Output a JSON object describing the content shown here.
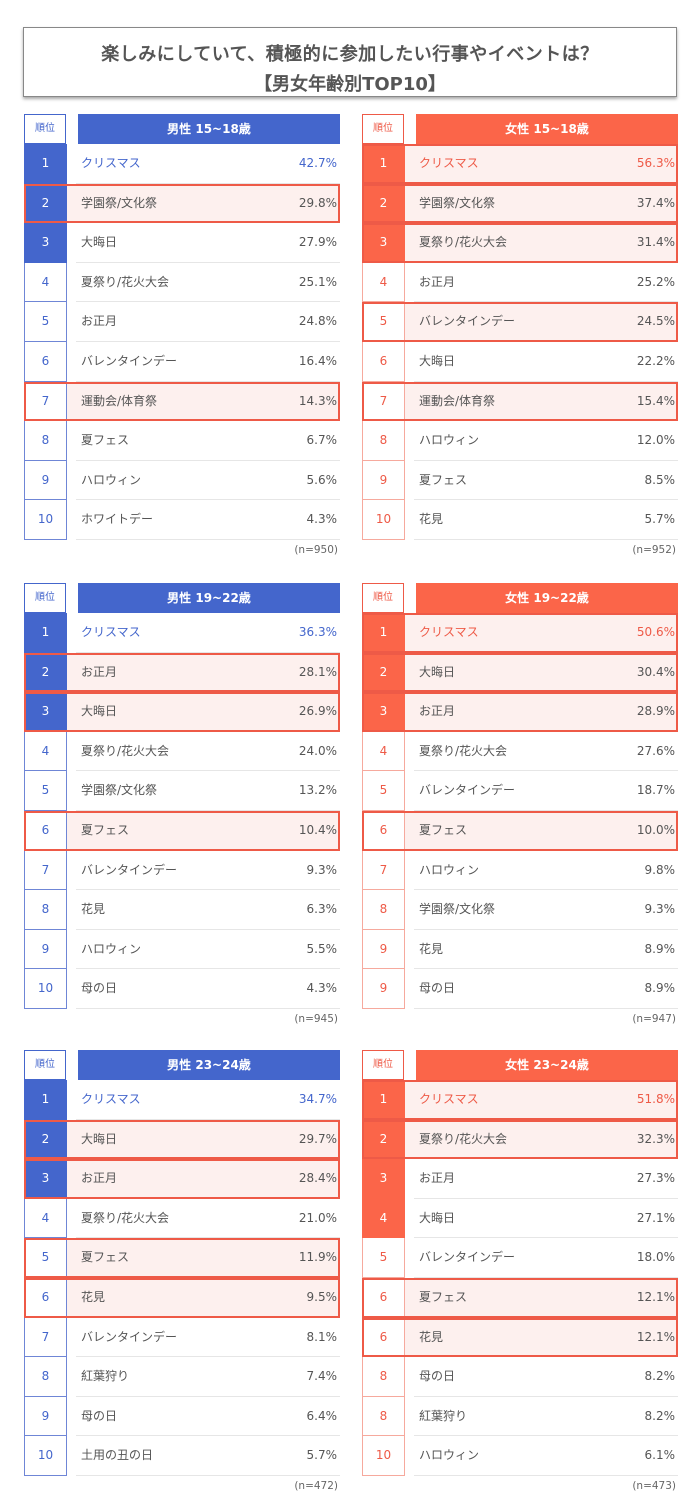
{
  "title": {
    "line1": "楽しみにしていて、積極的に参加したい行事やイベントは？",
    "line2": "【男女年齢別TOP10】"
  },
  "colors": {
    "male": "#4466cc",
    "female": "#fb6549",
    "highlight_border": "#ee5a47",
    "highlight_bg": "#fdf0ee"
  },
  "rank_header": "順位",
  "panels": [
    {
      "id": "m1518",
      "gender": "male",
      "header": "男性 15~18歳",
      "n": "(n=950)",
      "filled_ranks": 3,
      "rows": [
        {
          "rank": "1",
          "label": "クリスマス",
          "pct": "42.7%",
          "highlight": false
        },
        {
          "rank": "2",
          "label": "学園祭/文化祭",
          "pct": "29.8%",
          "highlight": true
        },
        {
          "rank": "3",
          "label": "大晦日",
          "pct": "27.9%",
          "highlight": false
        },
        {
          "rank": "4",
          "label": "夏祭り/花火大会",
          "pct": "25.1%",
          "highlight": false
        },
        {
          "rank": "5",
          "label": "お正月",
          "pct": "24.8%",
          "highlight": false
        },
        {
          "rank": "6",
          "label": "バレンタインデー",
          "pct": "16.4%",
          "highlight": false
        },
        {
          "rank": "7",
          "label": "運動会/体育祭",
          "pct": "14.3%",
          "highlight": true
        },
        {
          "rank": "8",
          "label": "夏フェス",
          "pct": "6.7%",
          "highlight": false
        },
        {
          "rank": "9",
          "label": "ハロウィン",
          "pct": "5.6%",
          "highlight": false
        },
        {
          "rank": "10",
          "label": "ホワイトデー",
          "pct": "4.3%",
          "highlight": false
        }
      ]
    },
    {
      "id": "f1518",
      "gender": "female",
      "header": "女性 15~18歳",
      "n": "(n=952)",
      "filled_ranks": 3,
      "rows": [
        {
          "rank": "1",
          "label": "クリスマス",
          "pct": "56.3%",
          "highlight": true
        },
        {
          "rank": "2",
          "label": "学園祭/文化祭",
          "pct": "37.4%",
          "highlight": true
        },
        {
          "rank": "3",
          "label": "夏祭り/花火大会",
          "pct": "31.4%",
          "highlight": true
        },
        {
          "rank": "4",
          "label": "お正月",
          "pct": "25.2%",
          "highlight": false
        },
        {
          "rank": "5",
          "label": "バレンタインデー",
          "pct": "24.5%",
          "highlight": true
        },
        {
          "rank": "6",
          "label": "大晦日",
          "pct": "22.2%",
          "highlight": false
        },
        {
          "rank": "7",
          "label": "運動会/体育祭",
          "pct": "15.4%",
          "highlight": true
        },
        {
          "rank": "8",
          "label": "ハロウィン",
          "pct": "12.0%",
          "highlight": false
        },
        {
          "rank": "9",
          "label": "夏フェス",
          "pct": "8.5%",
          "highlight": false
        },
        {
          "rank": "10",
          "label": "花見",
          "pct": "5.7%",
          "highlight": false
        }
      ]
    },
    {
      "id": "m1922",
      "gender": "male",
      "header": "男性 19~22歳",
      "n": "(n=945)",
      "filled_ranks": 3,
      "rows": [
        {
          "rank": "1",
          "label": "クリスマス",
          "pct": "36.3%",
          "highlight": false
        },
        {
          "rank": "2",
          "label": "お正月",
          "pct": "28.1%",
          "highlight": true
        },
        {
          "rank": "3",
          "label": "大晦日",
          "pct": "26.9%",
          "highlight": true
        },
        {
          "rank": "4",
          "label": "夏祭り/花火大会",
          "pct": "24.0%",
          "highlight": false
        },
        {
          "rank": "5",
          "label": "学園祭/文化祭",
          "pct": "13.2%",
          "highlight": false
        },
        {
          "rank": "6",
          "label": "夏フェス",
          "pct": "10.4%",
          "highlight": true
        },
        {
          "rank": "7",
          "label": "バレンタインデー",
          "pct": "9.3%",
          "highlight": false
        },
        {
          "rank": "8",
          "label": "花見",
          "pct": "6.3%",
          "highlight": false
        },
        {
          "rank": "9",
          "label": "ハロウィン",
          "pct": "5.5%",
          "highlight": false
        },
        {
          "rank": "10",
          "label": "母の日",
          "pct": "4.3%",
          "highlight": false
        }
      ]
    },
    {
      "id": "f1922",
      "gender": "female",
      "header": "女性 19~22歳",
      "n": "(n=947)",
      "filled_ranks": 3,
      "rows": [
        {
          "rank": "1",
          "label": "クリスマス",
          "pct": "50.6%",
          "highlight": true
        },
        {
          "rank": "2",
          "label": "大晦日",
          "pct": "30.4%",
          "highlight": true
        },
        {
          "rank": "3",
          "label": "お正月",
          "pct": "28.9%",
          "highlight": true
        },
        {
          "rank": "4",
          "label": "夏祭り/花火大会",
          "pct": "27.6%",
          "highlight": false
        },
        {
          "rank": "5",
          "label": "バレンタインデー",
          "pct": "18.7%",
          "highlight": false
        },
        {
          "rank": "6",
          "label": "夏フェス",
          "pct": "10.0%",
          "highlight": true
        },
        {
          "rank": "7",
          "label": "ハロウィン",
          "pct": "9.8%",
          "highlight": false
        },
        {
          "rank": "8",
          "label": "学園祭/文化祭",
          "pct": "9.3%",
          "highlight": false
        },
        {
          "rank": "9",
          "label": "花見",
          "pct": "8.9%",
          "highlight": false
        },
        {
          "rank": "9",
          "label": "母の日",
          "pct": "8.9%",
          "highlight": false
        }
      ]
    },
    {
      "id": "m2324",
      "gender": "male",
      "header": "男性 23~24歳",
      "n": "(n=472)",
      "filled_ranks": 3,
      "rows": [
        {
          "rank": "1",
          "label": "クリスマス",
          "pct": "34.7%",
          "highlight": false
        },
        {
          "rank": "2",
          "label": "大晦日",
          "pct": "29.7%",
          "highlight": true
        },
        {
          "rank": "3",
          "label": "お正月",
          "pct": "28.4%",
          "highlight": true
        },
        {
          "rank": "4",
          "label": "夏祭り/花火大会",
          "pct": "21.0%",
          "highlight": false
        },
        {
          "rank": "5",
          "label": "夏フェス",
          "pct": "11.9%",
          "highlight": true
        },
        {
          "rank": "6",
          "label": "花見",
          "pct": "9.5%",
          "highlight": true
        },
        {
          "rank": "7",
          "label": "バレンタインデー",
          "pct": "8.1%",
          "highlight": false
        },
        {
          "rank": "8",
          "label": "紅葉狩り",
          "pct": "7.4%",
          "highlight": false
        },
        {
          "rank": "9",
          "label": "母の日",
          "pct": "6.4%",
          "highlight": false
        },
        {
          "rank": "10",
          "label": "土用の丑の日",
          "pct": "5.7%",
          "highlight": false
        }
      ]
    },
    {
      "id": "f2324",
      "gender": "female",
      "header": "女性 23~24歳",
      "n": "(n=473)",
      "filled_ranks": 4,
      "rows": [
        {
          "rank": "1",
          "label": "クリスマス",
          "pct": "51.8%",
          "highlight": true
        },
        {
          "rank": "2",
          "label": "夏祭り/花火大会",
          "pct": "32.3%",
          "highlight": true
        },
        {
          "rank": "3",
          "label": "お正月",
          "pct": "27.3%",
          "highlight": false
        },
        {
          "rank": "4",
          "label": "大晦日",
          "pct": "27.1%",
          "highlight": false
        },
        {
          "rank": "5",
          "label": "バレンタインデー",
          "pct": "18.0%",
          "highlight": false
        },
        {
          "rank": "6",
          "label": "夏フェス",
          "pct": "12.1%",
          "highlight": true
        },
        {
          "rank": "6",
          "label": "花見",
          "pct": "12.1%",
          "highlight": true
        },
        {
          "rank": "8",
          "label": "母の日",
          "pct": "8.2%",
          "highlight": false
        },
        {
          "rank": "8",
          "label": "紅葉狩り",
          "pct": "8.2%",
          "highlight": false
        },
        {
          "rank": "10",
          "label": "ハロウィン",
          "pct": "6.1%",
          "highlight": false
        }
      ]
    }
  ],
  "chart_data": [
    {
      "type": "table",
      "title": "男性 15~18歳",
      "n": 950,
      "categories": [
        "クリスマス",
        "学園祭/文化祭",
        "大晦日",
        "夏祭り/花火大会",
        "お正月",
        "バレンタインデー",
        "運動会/体育祭",
        "夏フェス",
        "ハロウィン",
        "ホワイトデー"
      ],
      "values": [
        42.7,
        29.8,
        27.9,
        25.1,
        24.8,
        16.4,
        14.3,
        6.7,
        5.6,
        4.3
      ],
      "ranks": [
        1,
        2,
        3,
        4,
        5,
        6,
        7,
        8,
        9,
        10
      ]
    },
    {
      "type": "table",
      "title": "女性 15~18歳",
      "n": 952,
      "categories": [
        "クリスマス",
        "学園祭/文化祭",
        "夏祭り/花火大会",
        "お正月",
        "バレンタインデー",
        "大晦日",
        "運動会/体育祭",
        "ハロウィン",
        "夏フェス",
        "花見"
      ],
      "values": [
        56.3,
        37.4,
        31.4,
        25.2,
        24.5,
        22.2,
        15.4,
        12.0,
        8.5,
        5.7
      ],
      "ranks": [
        1,
        2,
        3,
        4,
        5,
        6,
        7,
        8,
        9,
        10
      ]
    },
    {
      "type": "table",
      "title": "男性 19~22歳",
      "n": 945,
      "categories": [
        "クリスマス",
        "お正月",
        "大晦日",
        "夏祭り/花火大会",
        "学園祭/文化祭",
        "夏フェス",
        "バレンタインデー",
        "花見",
        "ハロウィン",
        "母の日"
      ],
      "values": [
        36.3,
        28.1,
        26.9,
        24.0,
        13.2,
        10.4,
        9.3,
        6.3,
        5.5,
        4.3
      ],
      "ranks": [
        1,
        2,
        3,
        4,
        5,
        6,
        7,
        8,
        9,
        10
      ]
    },
    {
      "type": "table",
      "title": "女性 19~22歳",
      "n": 947,
      "categories": [
        "クリスマス",
        "大晦日",
        "お正月",
        "夏祭り/花火大会",
        "バレンタインデー",
        "夏フェス",
        "ハロウィン",
        "学園祭/文化祭",
        "花見",
        "母の日"
      ],
      "values": [
        50.6,
        30.4,
        28.9,
        27.6,
        18.7,
        10.0,
        9.8,
        9.3,
        8.9,
        8.9
      ],
      "ranks": [
        1,
        2,
        3,
        4,
        5,
        6,
        7,
        8,
        9,
        9
      ]
    },
    {
      "type": "table",
      "title": "男性 23~24歳",
      "n": 472,
      "categories": [
        "クリスマス",
        "大晦日",
        "お正月",
        "夏祭り/花火大会",
        "夏フェス",
        "花見",
        "バレンタインデー",
        "紅葉狩り",
        "母の日",
        "土用の丑の日"
      ],
      "values": [
        34.7,
        29.7,
        28.4,
        21.0,
        11.9,
        9.5,
        8.1,
        7.4,
        6.4,
        5.7
      ],
      "ranks": [
        1,
        2,
        3,
        4,
        5,
        6,
        7,
        8,
        9,
        10
      ]
    },
    {
      "type": "table",
      "title": "女性 23~24歳",
      "n": 473,
      "categories": [
        "クリスマス",
        "夏祭り/花火大会",
        "お正月",
        "大晦日",
        "バレンタインデー",
        "夏フェス",
        "花見",
        "母の日",
        "紅葉狩り",
        "ハロウィン"
      ],
      "values": [
        51.8,
        32.3,
        27.3,
        27.1,
        18.0,
        12.1,
        12.1,
        8.2,
        8.2,
        6.1
      ],
      "ranks": [
        1,
        2,
        3,
        4,
        5,
        6,
        6,
        8,
        8,
        10
      ]
    }
  ]
}
